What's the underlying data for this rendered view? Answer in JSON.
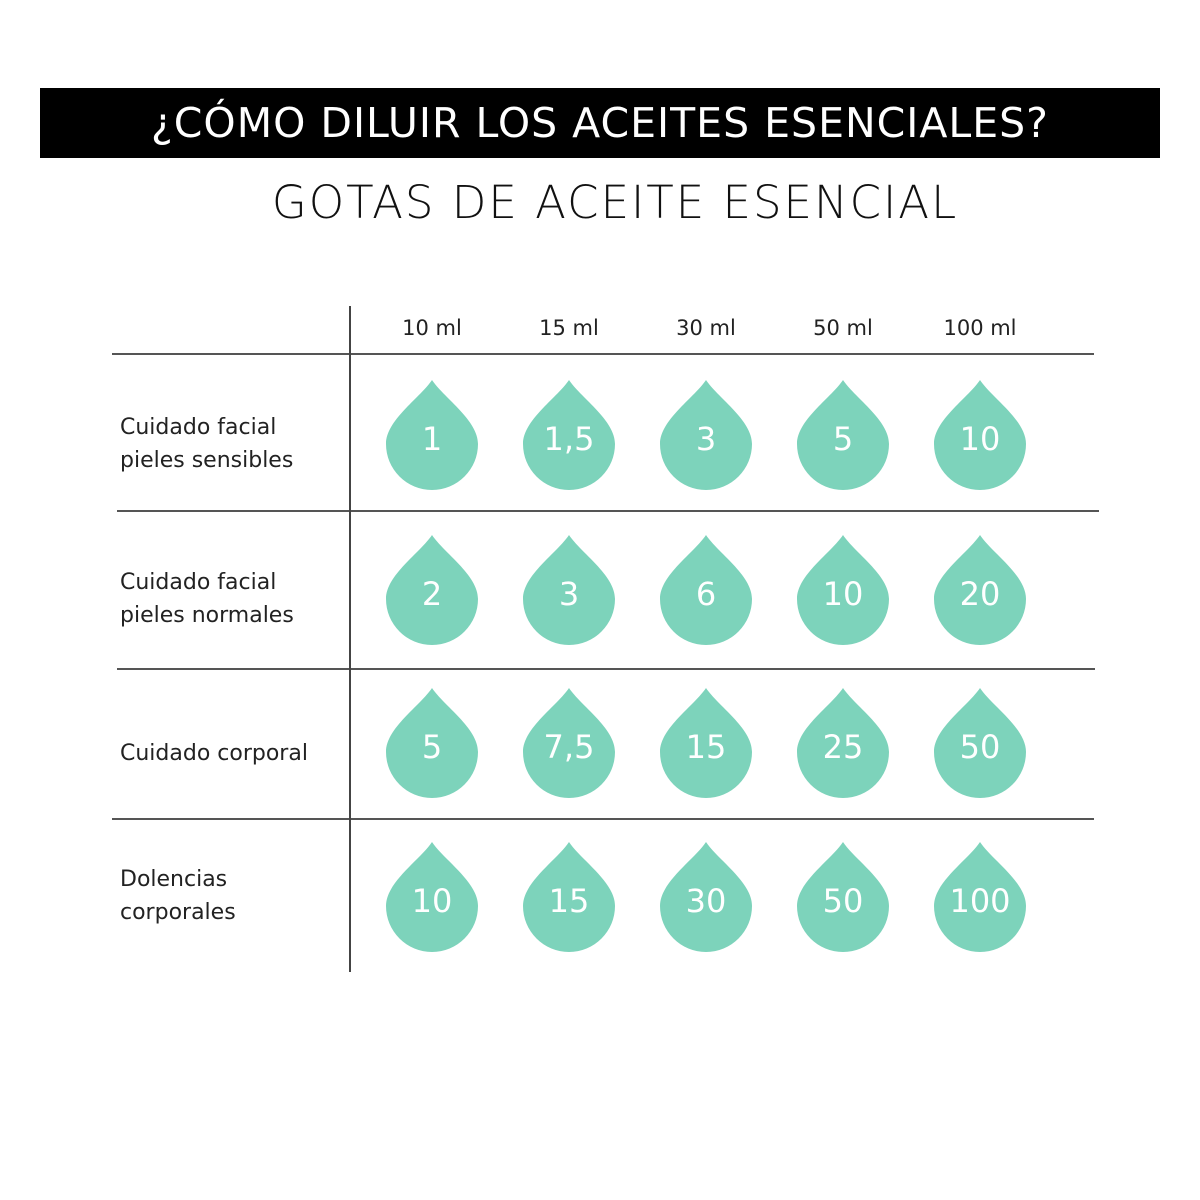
{
  "title": "¿CÓMO DILUIR LOS ACEITES ESENCIALES?",
  "subtitle": "GOTAS DE ACEITE ESENCIAL",
  "drop_color": "#7dd3bb",
  "columns": [
    "10 ml",
    "15 ml",
    "30 ml",
    "50 ml",
    "100 ml"
  ],
  "rows": [
    {
      "label_lines": [
        "Cuidado facial",
        "pieles sensibles"
      ],
      "values": [
        "1",
        "1,5",
        "3",
        "5",
        "10"
      ]
    },
    {
      "label_lines": [
        "Cuidado facial",
        "pieles normales"
      ],
      "values": [
        "2",
        "3",
        "6",
        "10",
        "20"
      ]
    },
    {
      "label_lines": [
        "Cuidado corporal"
      ],
      "values": [
        "5",
        "7,5",
        "15",
        "25",
        "50"
      ]
    },
    {
      "label_lines": [
        "Dolencias",
        "corporales"
      ],
      "values": [
        "10",
        "15",
        "30",
        "50",
        "100"
      ]
    }
  ]
}
